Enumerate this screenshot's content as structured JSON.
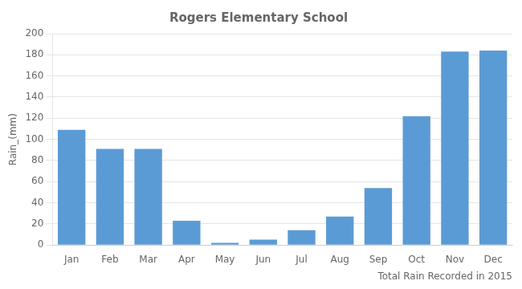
{
  "chart_data": {
    "type": "bar",
    "title": "Rogers Elementary School",
    "xlabel": "Total Rain Recorded in 2015",
    "ylabel": "Rain_(mm)",
    "categories": [
      "Jan",
      "Feb",
      "Mar",
      "Apr",
      "May",
      "Jun",
      "Jul",
      "Aug",
      "Sep",
      "Oct",
      "Nov",
      "Dec"
    ],
    "values": [
      109,
      91,
      91,
      23,
      2,
      5,
      14,
      27,
      54,
      122,
      183,
      184
    ],
    "color": "#5B9BD5",
    "ylim": [
      0,
      200
    ],
    "yticks": [
      0,
      20,
      40,
      60,
      80,
      100,
      120,
      140,
      160,
      180,
      200
    ],
    "grid": true
  }
}
